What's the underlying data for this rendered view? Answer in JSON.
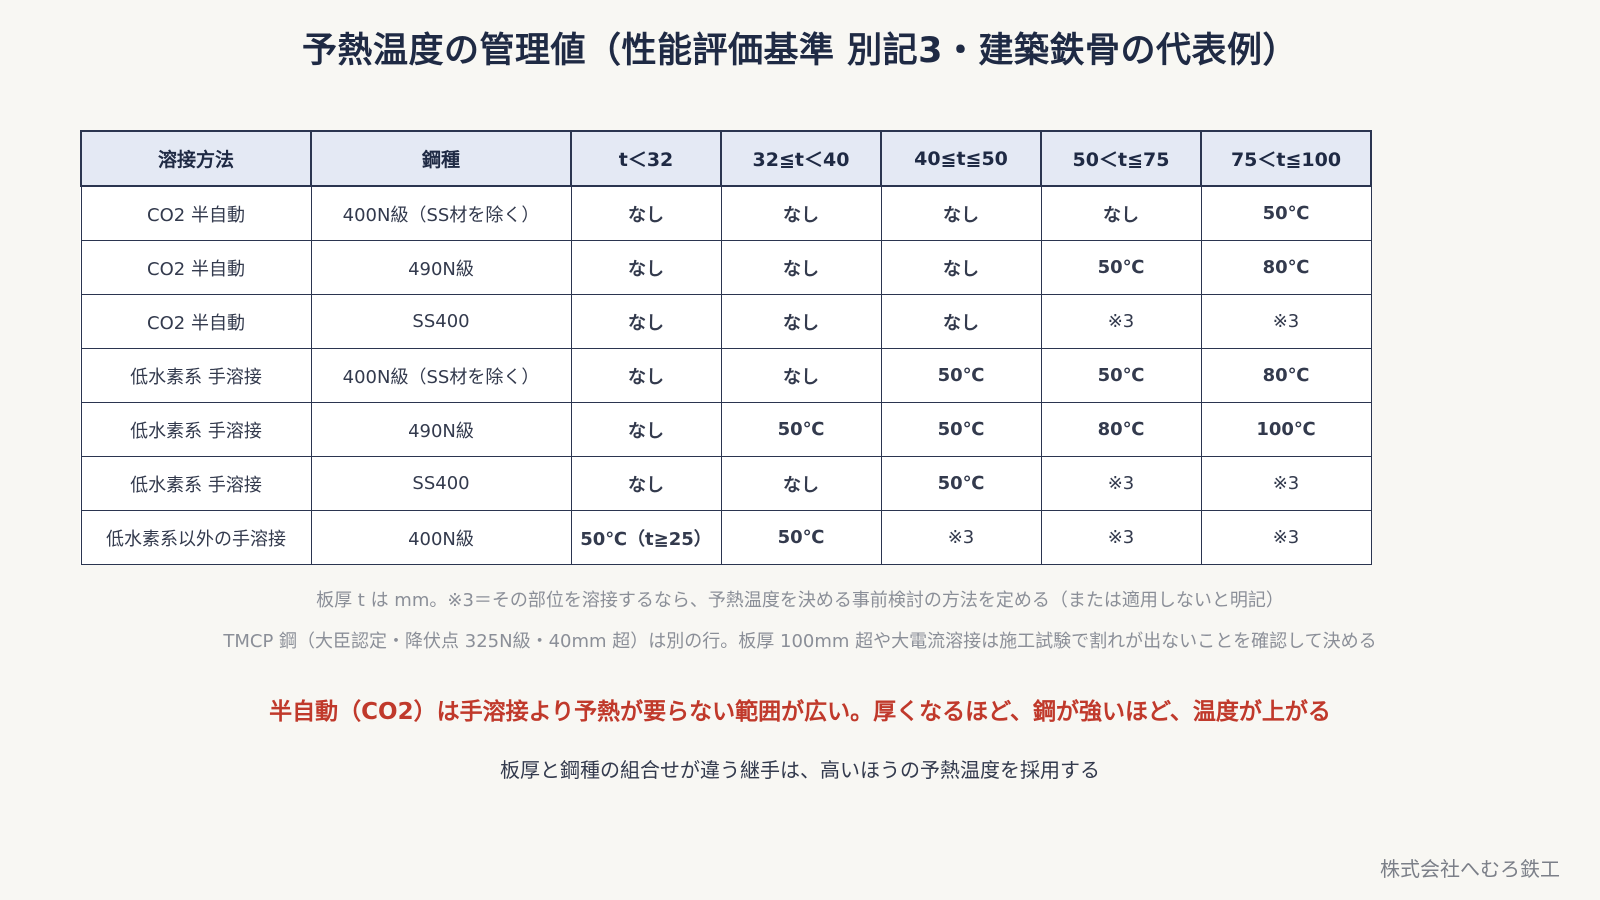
{
  "title": "予熱温度の管理値（性能評価基準 別記3・建築鉄骨の代表例）",
  "table": {
    "headers": [
      "溶接方法",
      "鋼種",
      "t＜32",
      "32≦t＜40",
      "40≦t≦50",
      "50＜t≦75",
      "75＜t≦100"
    ],
    "rows": [
      {
        "method": "CO2 半自動",
        "steel": "400N級（SS材を除く）",
        "cells": [
          "なし",
          "なし",
          "なし",
          "なし",
          "50℃"
        ]
      },
      {
        "method": "CO2 半自動",
        "steel": "490N級",
        "cells": [
          "なし",
          "なし",
          "なし",
          "50℃",
          "80℃"
        ]
      },
      {
        "method": "CO2 半自動",
        "steel": "SS400",
        "cells": [
          "なし",
          "なし",
          "なし",
          "※3",
          "※3"
        ]
      },
      {
        "method": "低水素系 手溶接",
        "steel": "400N級（SS材を除く）",
        "cells": [
          "なし",
          "なし",
          "50℃",
          "50℃",
          "80℃"
        ]
      },
      {
        "method": "低水素系 手溶接",
        "steel": "490N級",
        "cells": [
          "なし",
          "50℃",
          "50℃",
          "80℃",
          "100℃"
        ]
      },
      {
        "method": "低水素系 手溶接",
        "steel": "SS400",
        "cells": [
          "なし",
          "なし",
          "50℃",
          "※3",
          "※3"
        ]
      },
      {
        "method": "低水素系以外の手溶接",
        "steel": "400N級",
        "cells": [
          "50℃（t≧25）",
          "50℃",
          "※3",
          "※3",
          "※3"
        ]
      }
    ]
  },
  "notes": [
    "板厚 t は mm。※3＝その部位を溶接するなら、予熱温度を決める事前検討の方法を定める（または適用しないと明記）",
    "TMCP 鋼（大臣認定・降伏点 325N級・40mm 超）は別の行。板厚 100mm 超や大電流溶接は施工試験で割れが出ないことを確認して決める"
  ],
  "highlight": "半自動（CO2）は手溶接より予熱が要らない範囲が広い。厚くなるほど、鋼が強いほど、温度が上がる",
  "subline": "板厚と鋼種の組合せが違う継手は、高いほうの予熱温度を採用する",
  "company": "株式会社へむろ鉄工",
  "colors": {
    "none": "#2e7a4d",
    "temperature": "#c0392b",
    "note": "#8a8f9c",
    "header_bg": "#e4e9f4"
  }
}
